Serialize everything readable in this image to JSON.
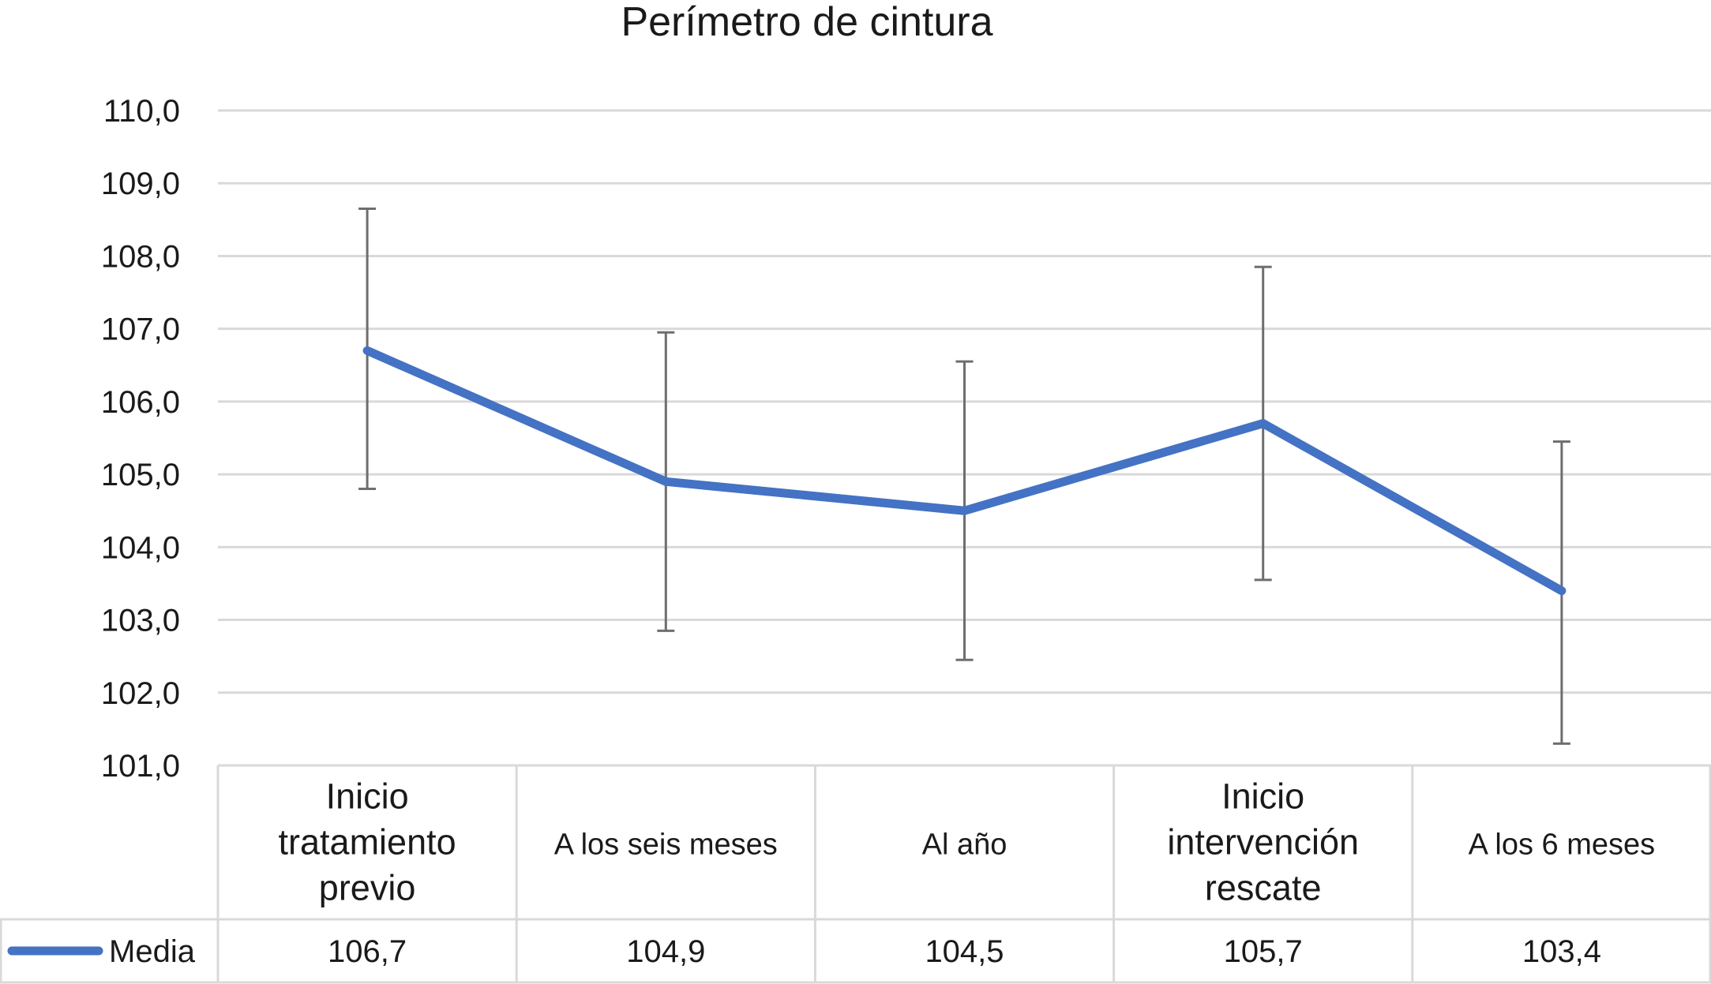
{
  "chart_data": {
    "type": "line",
    "title": "Perímetro de cintura",
    "categories": [
      [
        "Inicio",
        "tratamiento",
        "previo"
      ],
      [
        "A los seis meses"
      ],
      [
        "Al año"
      ],
      [
        "Inicio",
        "intervención",
        "rescate"
      ],
      [
        "A los 6 meses"
      ]
    ],
    "series": [
      {
        "name": "Media",
        "color": "#4472c4",
        "values": [
          106.7,
          104.9,
          104.5,
          105.7,
          103.4
        ],
        "labels": [
          "106,7",
          "104,9",
          "104,5",
          "105,7",
          "103,4"
        ],
        "error_low": [
          104.8,
          102.85,
          102.45,
          103.55,
          101.3
        ],
        "error_high": [
          108.65,
          106.95,
          106.55,
          107.85,
          105.45
        ]
      }
    ],
    "ylim": [
      101,
      110
    ],
    "yticks": [
      "110,0",
      "109,0",
      "108,0",
      "107,0",
      "106,0",
      "105,0",
      "104,0",
      "103,0",
      "102,0",
      "101,0"
    ],
    "grid": true,
    "data_table": true,
    "error_bar_color": "#6e6e6e"
  }
}
